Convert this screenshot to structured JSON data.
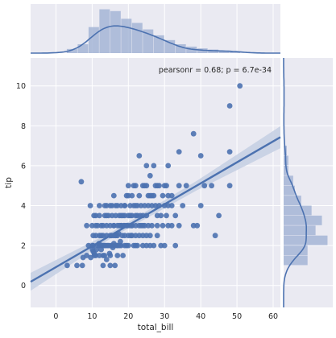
{
  "colors": {
    "panel_bg": "#eaeaf2",
    "grid": "#ffffff",
    "accent": "#4c72b0",
    "ci_band": "#c4cfe3",
    "hist_fill": "#a5b5d6",
    "text": "#262626"
  },
  "chart_data": {
    "type": "scatter",
    "subtype": "jointplot with regression line, marginal histograms and KDE curves",
    "xlabel": "total_bill",
    "ylabel": "tip",
    "annotation": "pearsonr = 0.68; p = 6.7e-34",
    "xlim": [
      -7,
      62
    ],
    "ylim": [
      -1.1,
      11.4
    ],
    "x_ticks": [
      0,
      10,
      20,
      30,
      40,
      50,
      60
    ],
    "y_ticks": [
      0,
      2,
      4,
      6,
      8,
      10
    ],
    "grid": true,
    "regression": {
      "slope": 0.105,
      "intercept": 0.92,
      "x_range": [
        -7,
        62
      ],
      "ci_halfwidth": [
        0.45,
        0.14,
        0.24,
        0.55
      ]
    },
    "points": [
      [
        3.1,
        1.0
      ],
      [
        7.3,
        1.0
      ],
      [
        5.8,
        1.0
      ],
      [
        7.5,
        1.4
      ],
      [
        8.5,
        1.5
      ],
      [
        9.6,
        1.4
      ],
      [
        10.1,
        1.8
      ],
      [
        10.3,
        1.7
      ],
      [
        10.1,
        2.0
      ],
      [
        10.6,
        1.6
      ],
      [
        10.3,
        2.0
      ],
      [
        10.3,
        2.5
      ],
      [
        10.6,
        1.5
      ],
      [
        11.0,
        1.5
      ],
      [
        11.2,
        1.8
      ],
      [
        11.6,
        2.0
      ],
      [
        11.9,
        2.1
      ],
      [
        12.0,
        1.5
      ],
      [
        12.0,
        2.0
      ],
      [
        12.5,
        1.8
      ],
      [
        12.7,
        2.0
      ],
      [
        13.0,
        2.0
      ],
      [
        13.0,
        1.5
      ],
      [
        13.3,
        2.0
      ],
      [
        13.4,
        1.5
      ],
      [
        13.8,
        2.0
      ],
      [
        14.0,
        2.5
      ],
      [
        14.2,
        2.0
      ],
      [
        14.5,
        2.0
      ],
      [
        14.8,
        1.6
      ],
      [
        15.0,
        1.5
      ],
      [
        15.0,
        2.0
      ],
      [
        15.4,
        2.5
      ],
      [
        15.5,
        2.0
      ],
      [
        15.7,
        1.9
      ],
      [
        16.0,
        2.1
      ],
      [
        16.3,
        2.0
      ],
      [
        16.5,
        2.5
      ],
      [
        16.9,
        2.0
      ],
      [
        17.0,
        1.5
      ],
      [
        17.3,
        2.6
      ],
      [
        17.5,
        2.0
      ],
      [
        17.8,
        2.2
      ],
      [
        18.0,
        2.0
      ],
      [
        18.3,
        2.5
      ],
      [
        18.7,
        3.0
      ],
      [
        19.0,
        2.0
      ],
      [
        19.5,
        2.0
      ],
      [
        19.8,
        3.0
      ],
      [
        20.0,
        2.0
      ],
      [
        20.5,
        3.0
      ],
      [
        20.7,
        2.5
      ],
      [
        21.0,
        3.0
      ],
      [
        21.5,
        2.0
      ],
      [
        22.0,
        3.0
      ],
      [
        22.5,
        2.0
      ],
      [
        23.0,
        3.0
      ],
      [
        23.3,
        3.5
      ],
      [
        24.0,
        2.0
      ],
      [
        24.5,
        3.0
      ],
      [
        25.0,
        2.0
      ],
      [
        25.5,
        3.0
      ],
      [
        26.0,
        2.5
      ],
      [
        26.5,
        3.0
      ],
      [
        27.0,
        2.0
      ],
      [
        28.0,
        3.0
      ],
      [
        29.0,
        2.0
      ],
      [
        30.0,
        2.0
      ],
      [
        31.0,
        3.0
      ],
      [
        32.0,
        3.0
      ],
      [
        33.0,
        2.0
      ],
      [
        34.0,
        3.0
      ],
      [
        7.0,
        5.2
      ],
      [
        10.0,
        3.0
      ],
      [
        11.0,
        3.0
      ],
      [
        12.0,
        3.5
      ],
      [
        12.5,
        3.0
      ],
      [
        13.0,
        3.0
      ],
      [
        13.5,
        3.5
      ],
      [
        14.0,
        3.0
      ],
      [
        14.5,
        3.5
      ],
      [
        15.0,
        3.0
      ],
      [
        15.5,
        3.5
      ],
      [
        16.0,
        3.0
      ],
      [
        16.5,
        3.5
      ],
      [
        17.0,
        3.0
      ],
      [
        17.5,
        3.5
      ],
      [
        18.0,
        3.0
      ],
      [
        18.5,
        3.5
      ],
      [
        19.0,
        3.5
      ],
      [
        19.5,
        3.0
      ],
      [
        20.0,
        3.5
      ],
      [
        20.5,
        4.0
      ],
      [
        21.0,
        3.5
      ],
      [
        21.5,
        4.0
      ],
      [
        22.0,
        3.5
      ],
      [
        22.5,
        4.0
      ],
      [
        23.0,
        4.5
      ],
      [
        23.5,
        4.0
      ],
      [
        24.0,
        3.5
      ],
      [
        24.5,
        4.0
      ],
      [
        25.0,
        3.5
      ],
      [
        25.5,
        4.0
      ],
      [
        26.0,
        4.5
      ],
      [
        26.5,
        4.0
      ],
      [
        27.0,
        4.5
      ],
      [
        27.5,
        4.0
      ],
      [
        28.0,
        3.5
      ],
      [
        28.5,
        4.0
      ],
      [
        29.0,
        3.5
      ],
      [
        29.5,
        4.5
      ],
      [
        30.0,
        4.0
      ],
      [
        30.5,
        5.0
      ],
      [
        31.0,
        4.0
      ],
      [
        32.0,
        4.0
      ],
      [
        33.0,
        3.5
      ],
      [
        34.0,
        5.0
      ],
      [
        35.0,
        4.0
      ],
      [
        36.0,
        5.0
      ],
      [
        38.0,
        3.0
      ],
      [
        39.0,
        3.0
      ],
      [
        40.0,
        4.0
      ],
      [
        41.0,
        5.0
      ],
      [
        43.0,
        5.0
      ],
      [
        44.0,
        2.5
      ],
      [
        45.0,
        3.5
      ],
      [
        48.0,
        5.0
      ],
      [
        19.5,
        4.5
      ],
      [
        20.0,
        5.0
      ],
      [
        16.0,
        4.5
      ],
      [
        15.0,
        4.0
      ],
      [
        18.0,
        4.0
      ],
      [
        19.0,
        4.0
      ],
      [
        21.0,
        4.5
      ],
      [
        22.0,
        5.0
      ],
      [
        24.0,
        5.0
      ],
      [
        25.0,
        5.0
      ],
      [
        26.0,
        5.5
      ],
      [
        23.0,
        6.5
      ],
      [
        25.0,
        6.0
      ],
      [
        27.0,
        6.0
      ],
      [
        28.0,
        5.0
      ],
      [
        30.0,
        5.0
      ],
      [
        31.0,
        6.0
      ],
      [
        34.0,
        6.7
      ],
      [
        38.0,
        7.6
      ],
      [
        40.0,
        6.5
      ],
      [
        48.0,
        6.7
      ],
      [
        48.0,
        9.0
      ],
      [
        50.8,
        10.0
      ],
      [
        16.3,
        1.0
      ],
      [
        17.0,
        2.0
      ],
      [
        18.5,
        1.5
      ],
      [
        19.0,
        2.5
      ],
      [
        20.0,
        2.5
      ],
      [
        21.0,
        2.5
      ],
      [
        22.0,
        2.5
      ],
      [
        23.0,
        2.5
      ],
      [
        24.0,
        3.0
      ],
      [
        25.0,
        2.5
      ],
      [
        26.0,
        2.0
      ],
      [
        28.0,
        2.5
      ],
      [
        11.5,
        3.0
      ],
      [
        12.0,
        2.5
      ],
      [
        13.0,
        2.5
      ],
      [
        14.0,
        3.5
      ],
      [
        15.0,
        2.5
      ],
      [
        16.0,
        3.0
      ],
      [
        17.0,
        2.5
      ],
      [
        18.0,
        3.0
      ],
      [
        13.0,
        1.0
      ],
      [
        14.0,
        1.3
      ],
      [
        15.0,
        1.0
      ],
      [
        9.0,
        2.0
      ],
      [
        11.0,
        2.5
      ],
      [
        12.5,
        2.5
      ],
      [
        13.5,
        2.0
      ],
      [
        16.0,
        2.5
      ],
      [
        17.5,
        3.0
      ],
      [
        19.0,
        3.0
      ],
      [
        21.0,
        3.0
      ],
      [
        22.0,
        2.0
      ],
      [
        24.0,
        2.5
      ],
      [
        20.5,
        3.5
      ],
      [
        22.5,
        3.5
      ],
      [
        23.5,
        3.0
      ],
      [
        18.0,
        3.5
      ],
      [
        19.0,
        4.0
      ],
      [
        17.0,
        4.0
      ],
      [
        15.5,
        4.0
      ],
      [
        16.5,
        4.0
      ],
      [
        20.0,
        4.5
      ],
      [
        14.0,
        4.0
      ],
      [
        13.5,
        4.0
      ],
      [
        12.0,
        4.0
      ],
      [
        11.0,
        3.5
      ],
      [
        10.5,
        3.5
      ],
      [
        9.5,
        4.0
      ],
      [
        8.5,
        3.0
      ],
      [
        21.5,
        5.0
      ],
      [
        22.0,
        4.0
      ],
      [
        24.5,
        5.0
      ],
      [
        25.5,
        4.5
      ],
      [
        26.5,
        4.5
      ],
      [
        27.5,
        5.0
      ],
      [
        28.5,
        5.0
      ],
      [
        29.5,
        3.0
      ],
      [
        30.5,
        3.5
      ],
      [
        31.0,
        4.5
      ],
      [
        32.0,
        4.5
      ]
    ],
    "marginal_x": {
      "bin_edges": [
        3,
        6,
        9,
        12,
        15,
        18,
        21,
        24,
        27,
        30,
        33,
        36,
        39,
        42,
        45,
        48,
        51
      ],
      "densities": [
        0.007,
        0.015,
        0.044,
        0.074,
        0.071,
        0.058,
        0.051,
        0.04,
        0.03,
        0.022,
        0.015,
        0.011,
        0.008,
        0.006,
        0.004,
        0.003
      ]
    },
    "marginal_y": {
      "bin_edges": [
        1.0,
        1.5,
        2.0,
        2.5,
        3.0,
        3.5,
        4.0,
        4.5,
        5.0,
        5.5,
        6.0,
        6.5,
        7.0
      ],
      "densities": [
        0.3,
        0.3,
        0.55,
        0.4,
        0.48,
        0.35,
        0.22,
        0.14,
        0.12,
        0.06,
        0.06,
        0.04
      ]
    }
  }
}
